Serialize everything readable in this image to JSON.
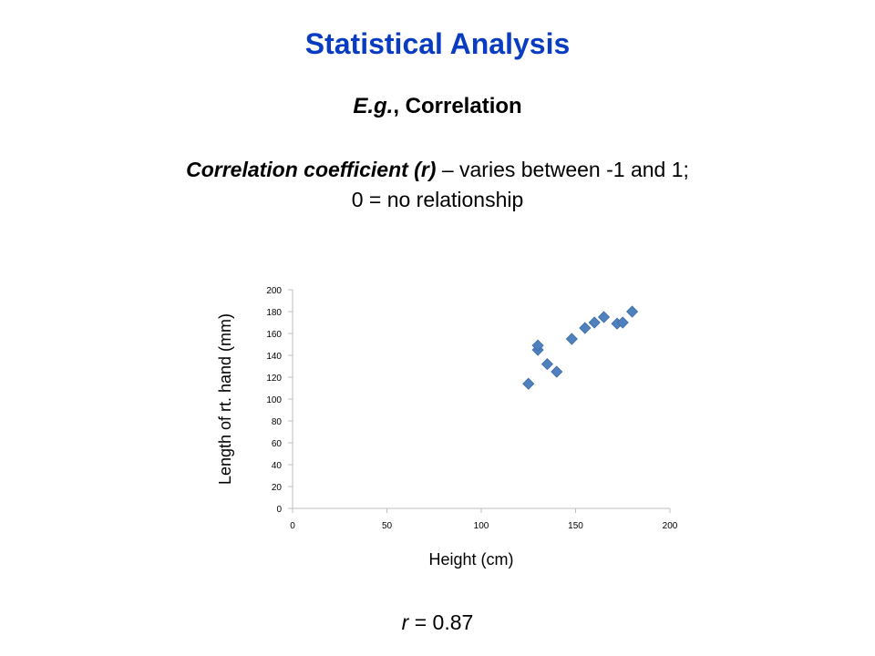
{
  "header": {
    "title": "Statistical Analysis",
    "subtitle_example": "E.g.",
    "subtitle_topic": ", Correlation",
    "desc_lead": "Correlation coefficient (r)",
    "desc_rest": " – varies between -1 and 1;",
    "desc_line2": "0 = no relationship"
  },
  "result": {
    "symbol": "r",
    "value_text": " = 0.87"
  },
  "colors": {
    "title": "#0a3cc2",
    "marker": "#4f81bd",
    "axis": "#bfbfbf"
  },
  "chart_data": {
    "type": "scatter",
    "xlabel": "Height (cm)",
    "ylabel": "Length of rt. hand (mm)",
    "xlim": [
      0,
      200
    ],
    "ylim": [
      0,
      200
    ],
    "xticks": [
      0,
      50,
      100,
      150,
      200
    ],
    "yticks": [
      0,
      20,
      40,
      60,
      80,
      100,
      120,
      140,
      160,
      180,
      200
    ],
    "grid": false,
    "marker": "diamond",
    "series": [
      {
        "x": [
          125,
          130,
          130,
          135,
          140,
          148,
          155,
          160,
          165,
          172,
          175,
          180
        ],
        "y": [
          114,
          145,
          149,
          132,
          125,
          155,
          165,
          170,
          175,
          169,
          170,
          180
        ]
      }
    ]
  }
}
